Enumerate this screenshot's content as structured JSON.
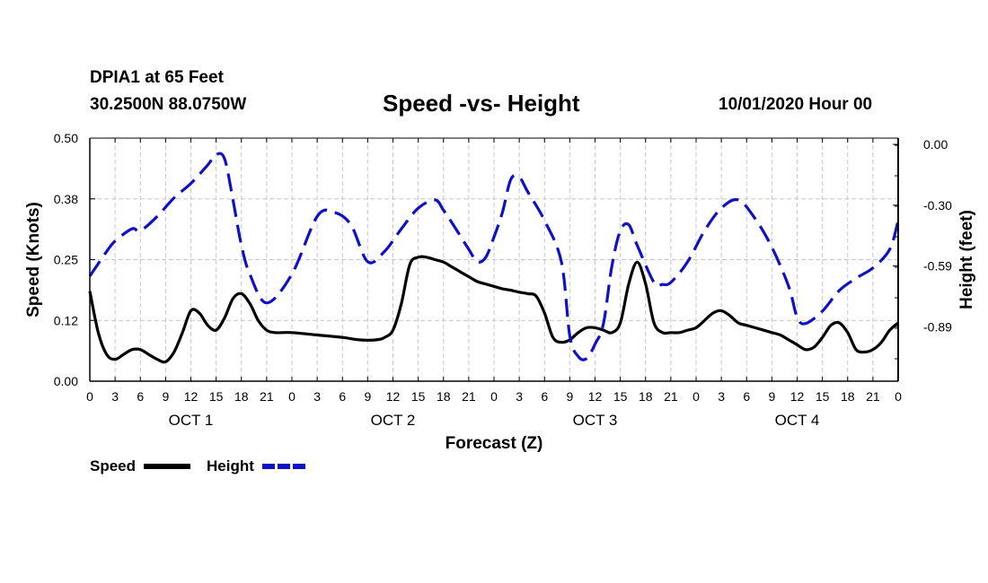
{
  "header": {
    "station": "DPIA1 at 65 Feet",
    "coordinates": "30.2500N 88.0750W",
    "title": "Speed -vs- Height",
    "issued": "10/01/2020 Hour 00"
  },
  "colors": {
    "speed": "#000000",
    "height": "#1010c8",
    "grid": "#c8c8c8"
  },
  "chart_data": {
    "type": "line",
    "title": "Speed -vs- Height",
    "xlabel": "Forecast (Z)",
    "ylabel": "Speed (Knots)",
    "y2label": "Height (feet)",
    "xlim": [
      0,
      96
    ],
    "ylim": [
      0,
      0.5
    ],
    "y2lim": [
      -1.18,
      0.0
    ],
    "y_ticks": [
      "0.00",
      "0.12",
      "0.25",
      "0.38",
      "0.50"
    ],
    "y_tick_values": [
      0,
      0.125,
      0.25,
      0.375,
      0.5
    ],
    "y2_ticks": [
      "0.00",
      "-0.30",
      "-0.59",
      "-0.89"
    ],
    "y2_tick_values": [
      0,
      -0.295,
      -0.59,
      -0.885
    ],
    "x_ticks": [
      "0",
      "3",
      "6",
      "9",
      "12",
      "15",
      "18",
      "21",
      "0",
      "3",
      "6",
      "9",
      "12",
      "15",
      "18",
      "21",
      "0",
      "3",
      "6",
      "9",
      "12",
      "15",
      "18",
      "21",
      "0",
      "3",
      "6",
      "9",
      "12",
      "15",
      "18",
      "21",
      "0"
    ],
    "day_labels": [
      {
        "label": "OCT 1",
        "x": 12
      },
      {
        "label": "OCT 2",
        "x": 36
      },
      {
        "label": "OCT 3",
        "x": 60
      },
      {
        "label": "OCT 4",
        "x": 84
      }
    ],
    "legend": {
      "placement": "bottom-left",
      "speed_label": "Speed",
      "height_label": "Height"
    },
    "series": [
      {
        "name": "Speed",
        "axis": "left",
        "style": "solid",
        "x": [
          0,
          1,
          2,
          3,
          4,
          5,
          6,
          7,
          8,
          9,
          10,
          11,
          12,
          13,
          14,
          15,
          16,
          17,
          18,
          19,
          20,
          21,
          22,
          24,
          27,
          30,
          32,
          34,
          35,
          36,
          37,
          38,
          39,
          40,
          41,
          42,
          43,
          44,
          45,
          46,
          47,
          48,
          49,
          50,
          51,
          52,
          53,
          54,
          55,
          56,
          57,
          58,
          59,
          60,
          61,
          62,
          63,
          64,
          65,
          66,
          67,
          68,
          69,
          70,
          71,
          72,
          73,
          74,
          75,
          76,
          77,
          78,
          79,
          80,
          81,
          82,
          83,
          84,
          85,
          86,
          87,
          88,
          89,
          90,
          91,
          92,
          93,
          94,
          95,
          96
        ],
        "y": [
          0.185,
          0.1,
          0.055,
          0.045,
          0.055,
          0.065,
          0.065,
          0.055,
          0.045,
          0.04,
          0.06,
          0.1,
          0.145,
          0.14,
          0.115,
          0.105,
          0.13,
          0.17,
          0.18,
          0.16,
          0.125,
          0.105,
          0.1,
          0.1,
          0.095,
          0.09,
          0.085,
          0.085,
          0.09,
          0.105,
          0.16,
          0.24,
          0.255,
          0.255,
          0.25,
          0.245,
          0.235,
          0.225,
          0.215,
          0.205,
          0.2,
          0.195,
          0.19,
          0.187,
          0.183,
          0.18,
          0.175,
          0.14,
          0.09,
          0.08,
          0.085,
          0.1,
          0.11,
          0.11,
          0.105,
          0.1,
          0.12,
          0.2,
          0.245,
          0.2,
          0.12,
          0.1,
          0.1,
          0.1,
          0.105,
          0.11,
          0.125,
          0.14,
          0.145,
          0.135,
          0.12,
          0.115,
          0.11,
          0.105,
          0.1,
          0.095,
          0.085,
          0.075,
          0.065,
          0.07,
          0.09,
          0.115,
          0.12,
          0.1,
          0.065,
          0.06,
          0.065,
          0.08,
          0.105,
          0.12
        ]
      },
      {
        "name": "Height",
        "axis": "right",
        "style": "dashed",
        "x": [
          0,
          2,
          3,
          5,
          6,
          8,
          10,
          12,
          14,
          15,
          16,
          17,
          18,
          19,
          21,
          24,
          27,
          29,
          31,
          33,
          35,
          37,
          39,
          41,
          42,
          43,
          45,
          46,
          47,
          48,
          49,
          50,
          51,
          52,
          54,
          56,
          57,
          58,
          59,
          60,
          61,
          62,
          63,
          64,
          65,
          67,
          68,
          69,
          71,
          73,
          75,
          77,
          79,
          81,
          83,
          84,
          85,
          87,
          89,
          91,
          93,
          95,
          96
        ],
        "y": [
          -0.67,
          -0.55,
          -0.5,
          -0.44,
          -0.45,
          -0.38,
          -0.29,
          -0.22,
          -0.13,
          -0.08,
          -0.1,
          -0.3,
          -0.52,
          -0.66,
          -0.8,
          -0.66,
          -0.38,
          -0.36,
          -0.42,
          -0.6,
          -0.55,
          -0.44,
          -0.34,
          -0.3,
          -0.35,
          -0.41,
          -0.54,
          -0.6,
          -0.58,
          -0.48,
          -0.36,
          -0.2,
          -0.19,
          -0.26,
          -0.4,
          -0.6,
          -0.96,
          -1.06,
          -1.07,
          -1.0,
          -0.9,
          -0.62,
          -0.45,
          -0.42,
          -0.52,
          -0.7,
          -0.71,
          -0.7,
          -0.6,
          -0.45,
          -0.34,
          -0.3,
          -0.39,
          -0.53,
          -0.72,
          -0.87,
          -0.9,
          -0.84,
          -0.74,
          -0.68,
          -0.63,
          -0.54,
          -0.4
        ]
      }
    ]
  }
}
